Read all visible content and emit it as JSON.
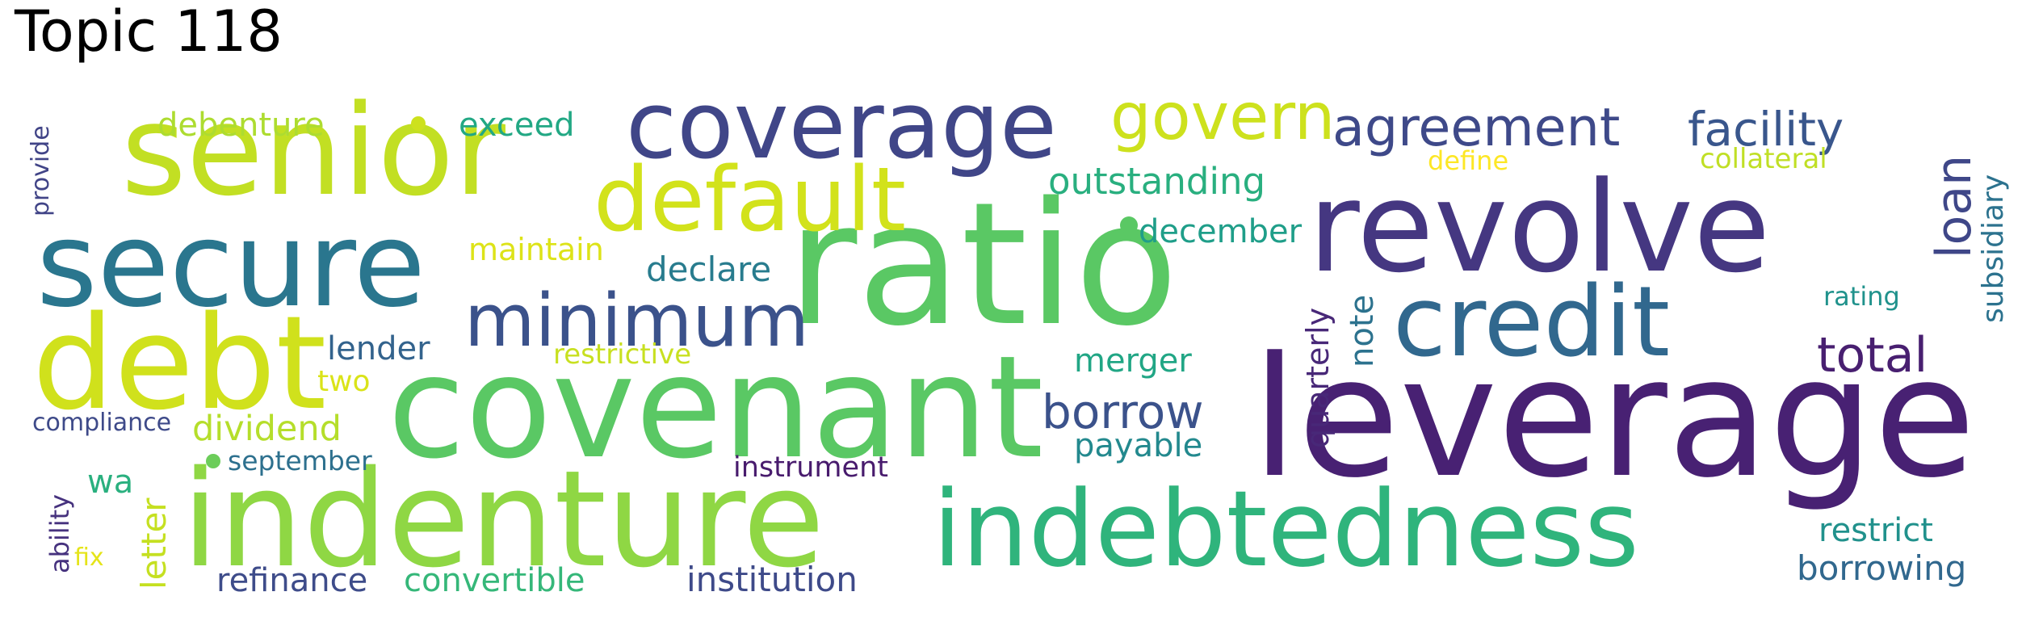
{
  "title": "Topic 118",
  "words": [
    {
      "text": "ratio",
      "color": "#5ac864"
    },
    {
      "text": "leverage",
      "color": "#482173"
    },
    {
      "text": "covenant",
      "color": "#5ac864"
    },
    {
      "text": "indenture",
      "color": "#8fd744"
    },
    {
      "text": "indebtedness",
      "color": "#2fb47c"
    },
    {
      "text": "senior",
      "color": "#c2df23"
    },
    {
      "text": "revolve",
      "color": "#453781"
    },
    {
      "text": "debt",
      "color": "#d0e11c"
    },
    {
      "text": "secure",
      "color": "#2a768e"
    },
    {
      "text": "coverage",
      "color": "#404688"
    },
    {
      "text": "credit",
      "color": "#31688e"
    },
    {
      "text": "default",
      "color": "#d2e21b"
    },
    {
      "text": "minimum",
      "color": "#3b528b"
    },
    {
      "text": "govern",
      "color": "#cde11d"
    },
    {
      "text": "agreement",
      "color": "#3e4989"
    },
    {
      "text": "facility",
      "color": "#39568c"
    },
    {
      "text": "loan",
      "color": "#3f4788"
    },
    {
      "text": "total",
      "color": "#481f70"
    },
    {
      "text": "borrow",
      "color": "#3b528b"
    },
    {
      "text": "outstanding",
      "color": "#29af7f"
    },
    {
      "text": "december",
      "color": "#1f9e89"
    },
    {
      "text": "declare",
      "color": "#287c8e"
    },
    {
      "text": "note",
      "color": "#2c728e"
    },
    {
      "text": "quarterly",
      "color": "#482878"
    },
    {
      "text": "merger",
      "color": "#21a685"
    },
    {
      "text": "payable",
      "color": "#23898e"
    },
    {
      "text": "lender",
      "color": "#33638d"
    },
    {
      "text": "debenture",
      "color": "#addc30"
    },
    {
      "text": "exceed",
      "color": "#22a884"
    },
    {
      "text": "maintain",
      "color": "#dde318"
    },
    {
      "text": "restrictive",
      "color": "#c8e020"
    },
    {
      "text": "two",
      "color": "#dae319"
    },
    {
      "text": "dividend",
      "color": "#b5de2b"
    },
    {
      "text": "compliance",
      "color": "#3e4a89"
    },
    {
      "text": "september",
      "color": "#2d708e"
    },
    {
      "text": "instrument",
      "color": "#481b6d"
    },
    {
      "text": "wa",
      "color": "#2ab07f"
    },
    {
      "text": "letter",
      "color": "#c5e021"
    },
    {
      "text": "ability",
      "color": "#46327e"
    },
    {
      "text": "fix",
      "color": "#e5e419"
    },
    {
      "text": "refinance",
      "color": "#3e4c8a"
    },
    {
      "text": "convertible",
      "color": "#35b779"
    },
    {
      "text": "institution",
      "color": "#3e4a89"
    },
    {
      "text": "restrict",
      "color": "#21918c"
    },
    {
      "text": "borrowing",
      "color": "#31688e"
    },
    {
      "text": "define",
      "color": "#fde725"
    },
    {
      "text": "collateral",
      "color": "#c0df25"
    },
    {
      "text": "subsidiary",
      "color": "#2c728e"
    },
    {
      "text": "rating",
      "color": "#20928c"
    },
    {
      "text": "provide",
      "color": "#414487"
    }
  ]
}
